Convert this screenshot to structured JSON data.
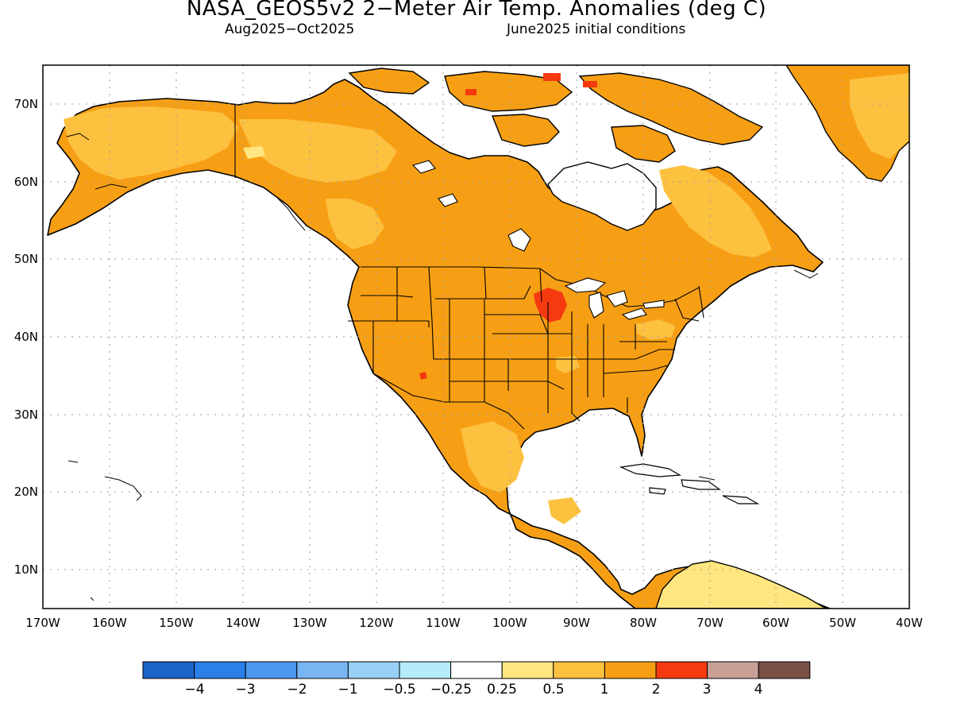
{
  "title": "NASA_GEOS5v2 2−Meter Air Temp. Anomalies (deg C)",
  "subtitle_left": "Aug2025−Oct2025",
  "subtitle_right": "June2025 initial conditions",
  "lat_labels": [
    "70N",
    "60N",
    "50N",
    "40N",
    "30N",
    "20N",
    "10N"
  ],
  "lon_labels": [
    "170W",
    "160W",
    "150W",
    "140W",
    "130W",
    "120W",
    "110W",
    "100W",
    "90W",
    "80W",
    "70W",
    "60W",
    "50W",
    "40W"
  ],
  "colorbar": {
    "colors": [
      "#1a64c8",
      "#2a7fe8",
      "#4c98ee",
      "#78b6f3",
      "#98cff6",
      "#b4ecfa",
      "#ffffff",
      "#ffe680",
      "#fdc140",
      "#f79f14",
      "#f53a10",
      "#c8a096",
      "#7a5046"
    ],
    "tick_labels": [
      "−4",
      "−3",
      "−2",
      "−1",
      "−0.5",
      "−0.25",
      "0.25",
      "0.5",
      "1",
      "2",
      "3",
      "4"
    ]
  },
  "colors": {
    "anomaly_main": "#f79f14",
    "anomaly_light": "#fdc140",
    "anomaly_hot": "#f53a10",
    "land_outline": "#000000",
    "grid": "#9a9a9a"
  }
}
